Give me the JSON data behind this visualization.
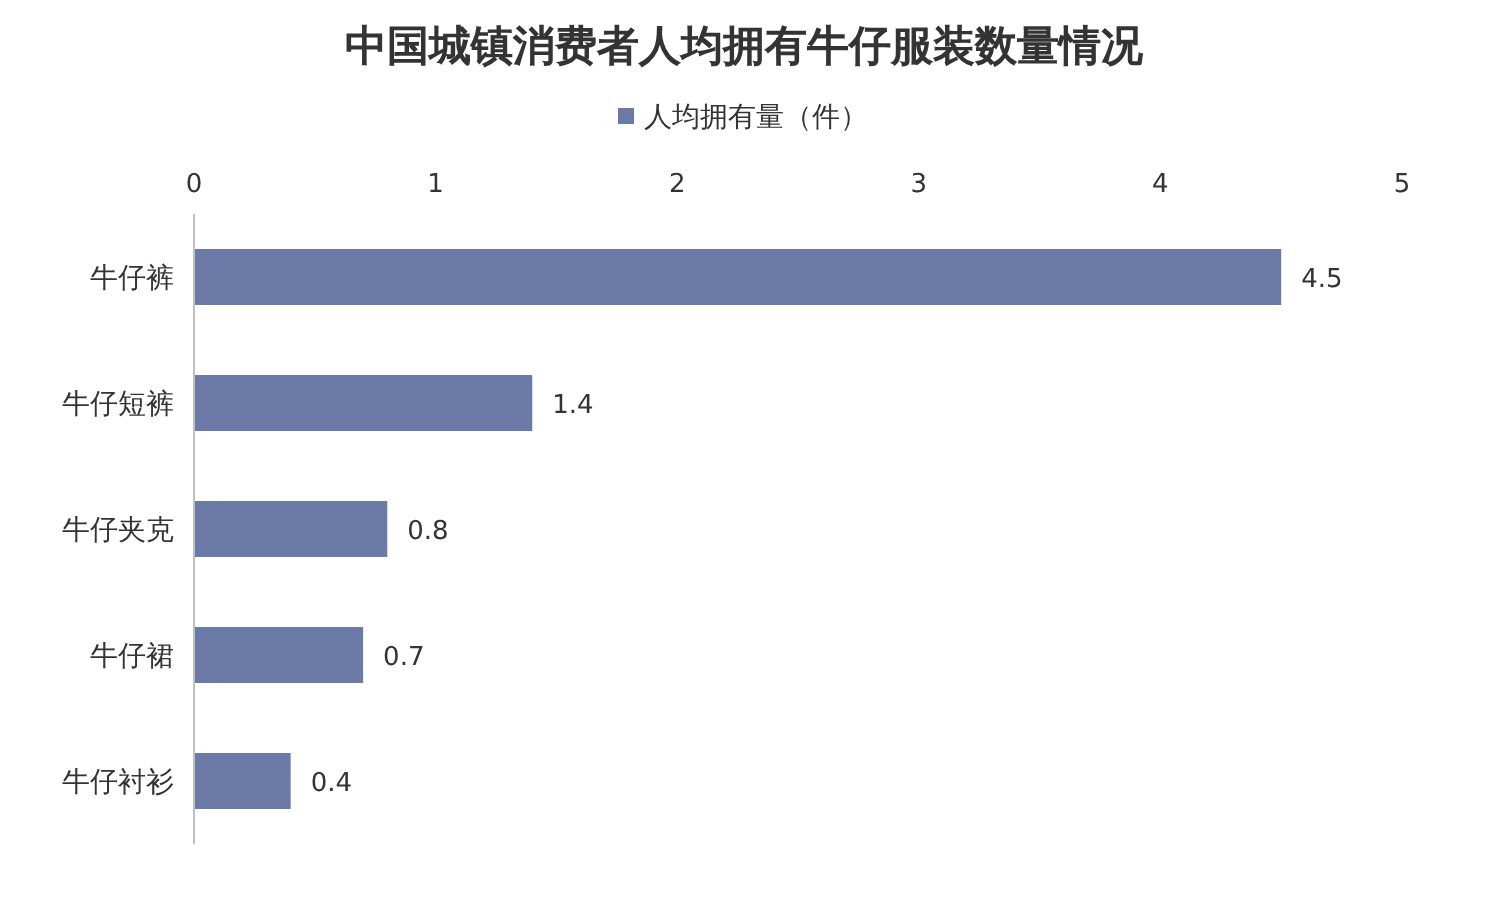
{
  "chart_data": {
    "type": "bar",
    "orientation": "horizontal",
    "title": "中国城镇消费者人均拥有牛仔服装数量情况",
    "categories": [
      "牛仔裤",
      "牛仔短裤",
      "牛仔夹克",
      "牛仔裙",
      "牛仔衬衫"
    ],
    "series": [
      {
        "name": "人均拥有量（件）",
        "color": "#6b7aa6",
        "values": [
          4.5,
          1.4,
          0.8,
          0.7,
          0.4
        ]
      }
    ],
    "xlim": [
      0,
      5
    ],
    "xticks": [
      0,
      1,
      2,
      3,
      4,
      5
    ],
    "legend": "top",
    "data_labels": true
  }
}
